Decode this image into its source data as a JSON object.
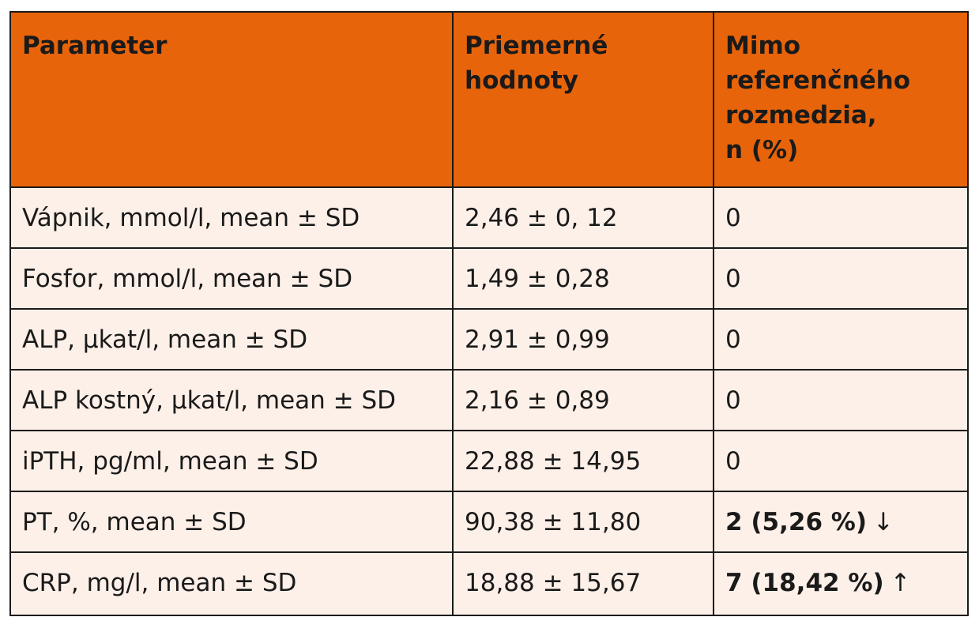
{
  "table": {
    "headers": [
      "Parameter",
      "Priemerné hodnoty",
      "Mimo referenčného rozmedzia, n (%)"
    ],
    "header_lines": [
      [
        "Parameter"
      ],
      [
        "Priemerné",
        "hodnoty"
      ],
      [
        "Mimo",
        "referenčného",
        "rozmedzia,",
        "n (%)"
      ]
    ],
    "rows": [
      {
        "parameter": "Vápnik, mmol/l, mean ± SD",
        "mean": "2,46  ± 0, 12",
        "out_of_range": "0",
        "arrow": ""
      },
      {
        "parameter": "Fosfor, mmol/l,  mean ± SD",
        "mean": "1,49  ± 0,28",
        "out_of_range": "0",
        "arrow": ""
      },
      {
        "parameter": "ALP, µkat/l,  mean ± SD",
        "mean": "2,91  ± 0,99",
        "out_of_range": "0",
        "arrow": ""
      },
      {
        "parameter": "ALP kostný, µkat/l, mean ± SD",
        "mean": "2,16  ±  0,89",
        "out_of_range": "0",
        "arrow": ""
      },
      {
        "parameter": "iPTH, pg/ml, mean ± SD",
        "mean": "22,88  ± 14,95",
        "out_of_range": "0",
        "arrow": ""
      },
      {
        "parameter": "PT, %, mean ± SD",
        "mean": "90,38  ± 11,80",
        "out_of_range": "2 (5,26 %)",
        "arrow": "↓"
      },
      {
        "parameter": "CRP, mg/l, mean ± SD",
        "mean": "18,88  ± 15,67",
        "out_of_range": "7 (18,42 %)",
        "arrow": "↑"
      }
    ]
  },
  "colors": {
    "header_bg": "#e8640a",
    "body_bg": "#fdf0e8",
    "border": "#1a1a1a"
  }
}
